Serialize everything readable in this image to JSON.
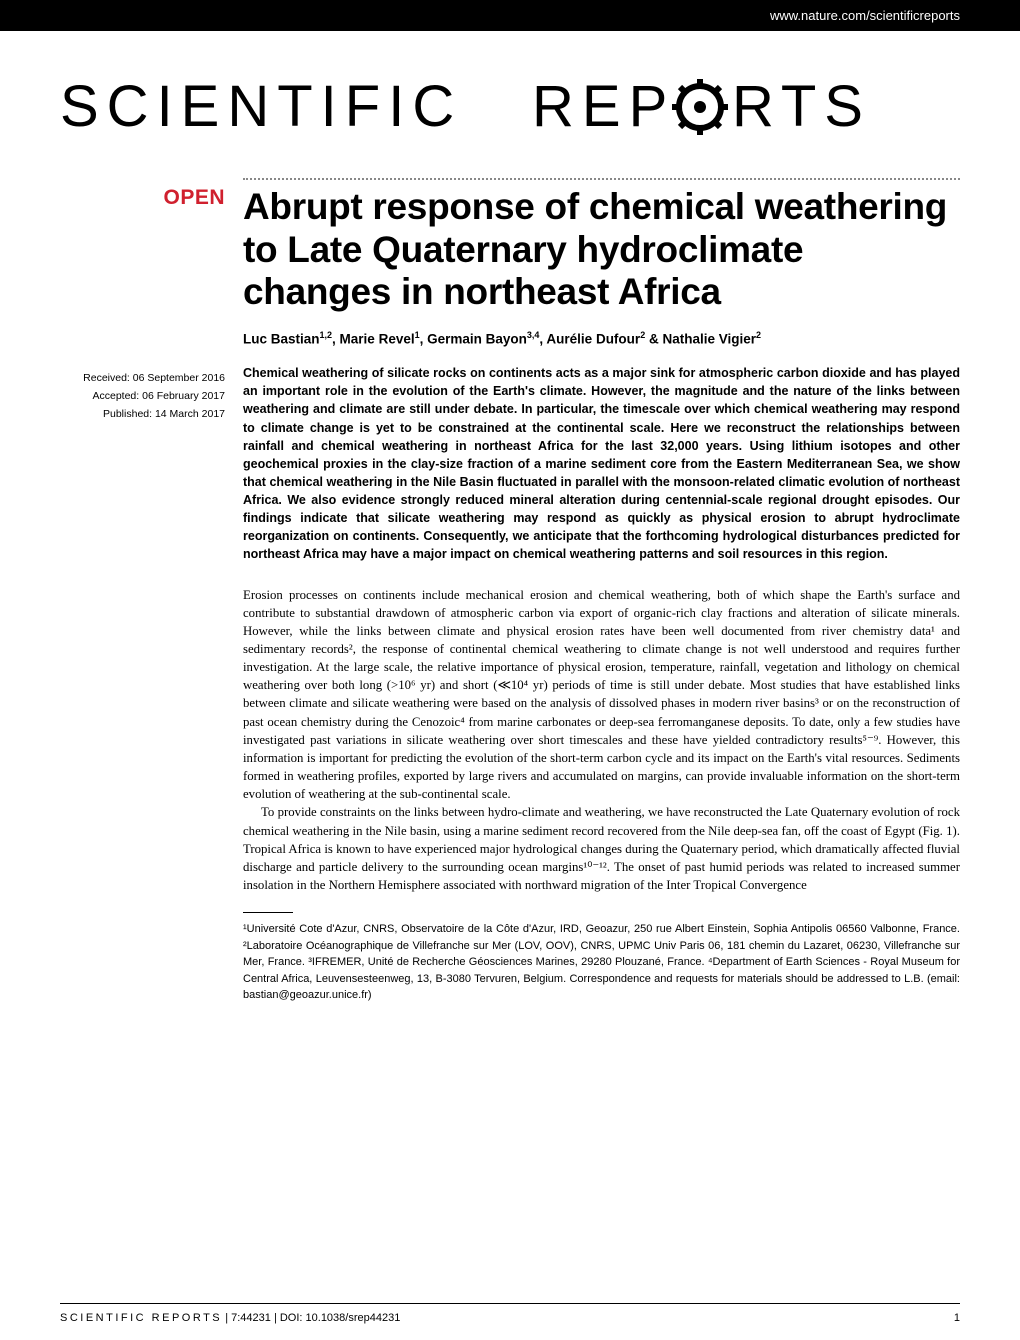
{
  "header": {
    "url": "www.nature.com/scientificreports"
  },
  "logo": {
    "text": "SCIENTIFIC REPORTS",
    "alt": "Scientific Reports"
  },
  "badge": {
    "open": "OPEN"
  },
  "meta": {
    "received": "Received: 06 September 2016",
    "accepted": "Accepted: 06 February 2017",
    "published": "Published: 14 March 2017"
  },
  "title": "Abrupt response of chemical weathering to Late Quaternary hydroclimate changes in northeast Africa",
  "authors_html": "Luc Bastian<sup>1,2</sup>, Marie Revel<sup>1</sup>, Germain Bayon<sup>3,4</sup>, Aurélie Dufour<sup>2</sup> & Nathalie Vigier<sup>2</sup>",
  "abstract": "Chemical weathering of silicate rocks on continents acts as a major sink for atmospheric carbon dioxide and has played an important role in the evolution of the Earth's climate. However, the magnitude and the nature of the links between weathering and climate are still under debate. In particular, the timescale over which chemical weathering may respond to climate change is yet to be constrained at the continental scale. Here we reconstruct the relationships between rainfall and chemical weathering in northeast Africa for the last 32,000 years. Using lithium isotopes and other geochemical proxies in the clay-size fraction of a marine sediment core from the Eastern Mediterranean Sea, we show that chemical weathering in the Nile Basin fluctuated in parallel with the monsoon-related climatic evolution of northeast Africa. We also evidence strongly reduced mineral alteration during centennial-scale regional drought episodes. Our findings indicate that silicate weathering may respond as quickly as physical erosion to abrupt hydroclimate reorganization on continents. Consequently, we anticipate that the forthcoming hydrological disturbances predicted for northeast Africa may have a major impact on chemical weathering patterns and soil resources in this region.",
  "body": {
    "p1": "Erosion processes on continents include mechanical erosion and chemical weathering, both of which shape the Earth's surface and contribute to substantial drawdown of atmospheric carbon via export of organic-rich clay fractions and alteration of silicate minerals. However, while the links between climate and physical erosion rates have been well documented from river chemistry data¹ and sedimentary records², the response of continental chemical weathering to climate change is not well understood and requires further investigation. At the large scale, the relative importance of physical erosion, temperature, rainfall, vegetation and lithology on chemical weathering over both long (>10⁶ yr) and short (≪10⁴ yr) periods of time is still under debate. Most studies that have established links between climate and silicate weathering were based on the analysis of dissolved phases in modern river basins³ or on the reconstruction of past ocean chemistry during the Cenozoic⁴ from marine carbonates or deep-sea ferromanganese deposits. To date, only a few studies have investigated past variations in silicate weathering over short timescales and these have yielded contradictory results⁵⁻⁹. However, this information is important for predicting the evolution of the short-term carbon cycle and its impact on the Earth's vital resources. Sediments formed in weathering profiles, exported by large rivers and accumulated on margins, can provide invaluable information on the short-term evolution of weathering at the sub-continental scale.",
    "p2": "To provide constraints on the links between hydro-climate and weathering, we have reconstructed the Late Quaternary evolution of rock chemical weathering in the Nile basin, using a marine sediment record recovered from the Nile deep-sea fan, off the coast of Egypt (Fig. 1). Tropical Africa is known to have experienced major hydrological changes during the Quaternary period, which dramatically affected fluvial discharge and particle delivery to the surrounding ocean margins¹⁰⁻¹². The onset of past humid periods was related to increased summer insolation in the Northern Hemisphere associated with northward migration of the Inter Tropical Convergence"
  },
  "affiliations": "¹Université Cote d'Azur, CNRS, Observatoire de la Côte d'Azur, IRD, Geoazur, 250 rue Albert Einstein, Sophia Antipolis 06560 Valbonne, France. ²Laboratoire Océanographique de Villefranche sur Mer (LOV, OOV), CNRS, UPMC Univ Paris 06, 181 chemin du Lazaret, 06230, Villefranche sur Mer, France. ³IFREMER, Unité de Recherche Géosciences Marines, 29280 Plouzané, France. ⁴Department of Earth Sciences - Royal Museum for Central Africa, Leuvensesteenweg, 13, B-3080 Tervuren, Belgium. Correspondence and requests for materials should be addressed to L.B. (email: bastian@geoazur.unice.fr)",
  "footer": {
    "brand": "SCIENTIFIC REPORTS",
    "citation": " | 7:44231 | DOI: 10.1038/srep44231",
    "page": "1"
  },
  "colors": {
    "accent_red": "#d0202e",
    "text": "#000000",
    "bg": "#ffffff",
    "dotted": "#888888"
  }
}
